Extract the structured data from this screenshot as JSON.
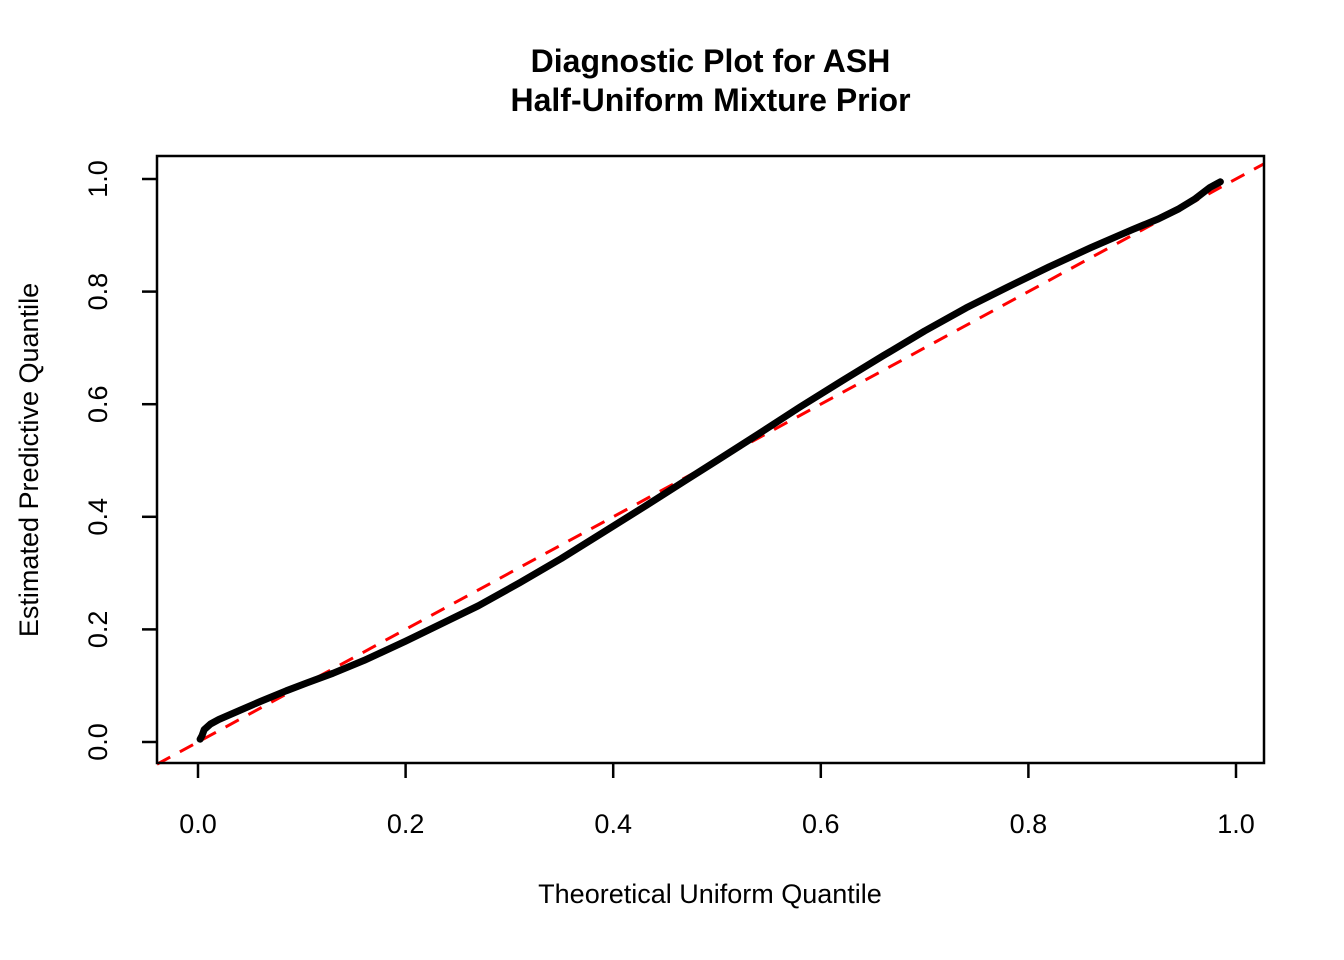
{
  "title": {
    "line1": "Diagnostic Plot for ASH",
    "line2": "Half-Uniform Mixture Prior"
  },
  "colors": {
    "background": "#FFFFFF",
    "curve": "#000000",
    "reference_line": "#FF0000",
    "axis": "#000000"
  },
  "chart_data": {
    "type": "line",
    "title": "Diagnostic Plot for ASH Half-Uniform Mixture Prior",
    "xlabel": "Theoretical Uniform Quantile",
    "ylabel": "Estimated Predictive Quantile",
    "xlim": [
      -0.04,
      1.03
    ],
    "ylim": [
      -0.04,
      1.04
    ],
    "grid": false,
    "legend": "none",
    "x_tick_values": [
      0.0,
      0.2,
      0.4,
      0.6,
      0.8,
      1.0
    ],
    "x_tick_labels": [
      "0.0",
      "0.2",
      "0.4",
      "0.6",
      "0.8",
      "1.0"
    ],
    "y_tick_values": [
      0.0,
      0.2,
      0.4,
      0.6,
      0.8,
      1.0
    ],
    "y_tick_labels": [
      "0.0",
      "0.2",
      "0.4",
      "0.6",
      "0.8",
      "1.0"
    ],
    "series": [
      {
        "name": "estimated-predictive-quantile-curve",
        "color": "#000000",
        "style": "solid",
        "line_width": 7,
        "points": [
          [
            0.002,
            0.005
          ],
          [
            0.004,
            0.012
          ],
          [
            0.006,
            0.022
          ],
          [
            0.012,
            0.032
          ],
          [
            0.02,
            0.04
          ],
          [
            0.04,
            0.056
          ],
          [
            0.06,
            0.072
          ],
          [
            0.085,
            0.091
          ],
          [
            0.105,
            0.105
          ],
          [
            0.13,
            0.122
          ],
          [
            0.16,
            0.145
          ],
          [
            0.2,
            0.179
          ],
          [
            0.24,
            0.215
          ],
          [
            0.27,
            0.242
          ],
          [
            0.31,
            0.283
          ],
          [
            0.35,
            0.326
          ],
          [
            0.39,
            0.372
          ],
          [
            0.43,
            0.418
          ],
          [
            0.47,
            0.465
          ],
          [
            0.5,
            0.5
          ],
          [
            0.54,
            0.547
          ],
          [
            0.58,
            0.595
          ],
          [
            0.62,
            0.641
          ],
          [
            0.66,
            0.686
          ],
          [
            0.7,
            0.73
          ],
          [
            0.74,
            0.771
          ],
          [
            0.78,
            0.808
          ],
          [
            0.82,
            0.844
          ],
          [
            0.86,
            0.878
          ],
          [
            0.9,
            0.91
          ],
          [
            0.925,
            0.929
          ],
          [
            0.945,
            0.947
          ],
          [
            0.96,
            0.964
          ],
          [
            0.975,
            0.985
          ],
          [
            0.982,
            0.992
          ],
          [
            0.985,
            0.995
          ]
        ]
      },
      {
        "name": "reference-diagonal-y-equals-x",
        "color": "#FF0000",
        "style": "dashed",
        "line_width": 3,
        "points": [
          [
            -0.0395,
            -0.0395
          ],
          [
            1.027,
            1.027
          ]
        ]
      }
    ]
  }
}
